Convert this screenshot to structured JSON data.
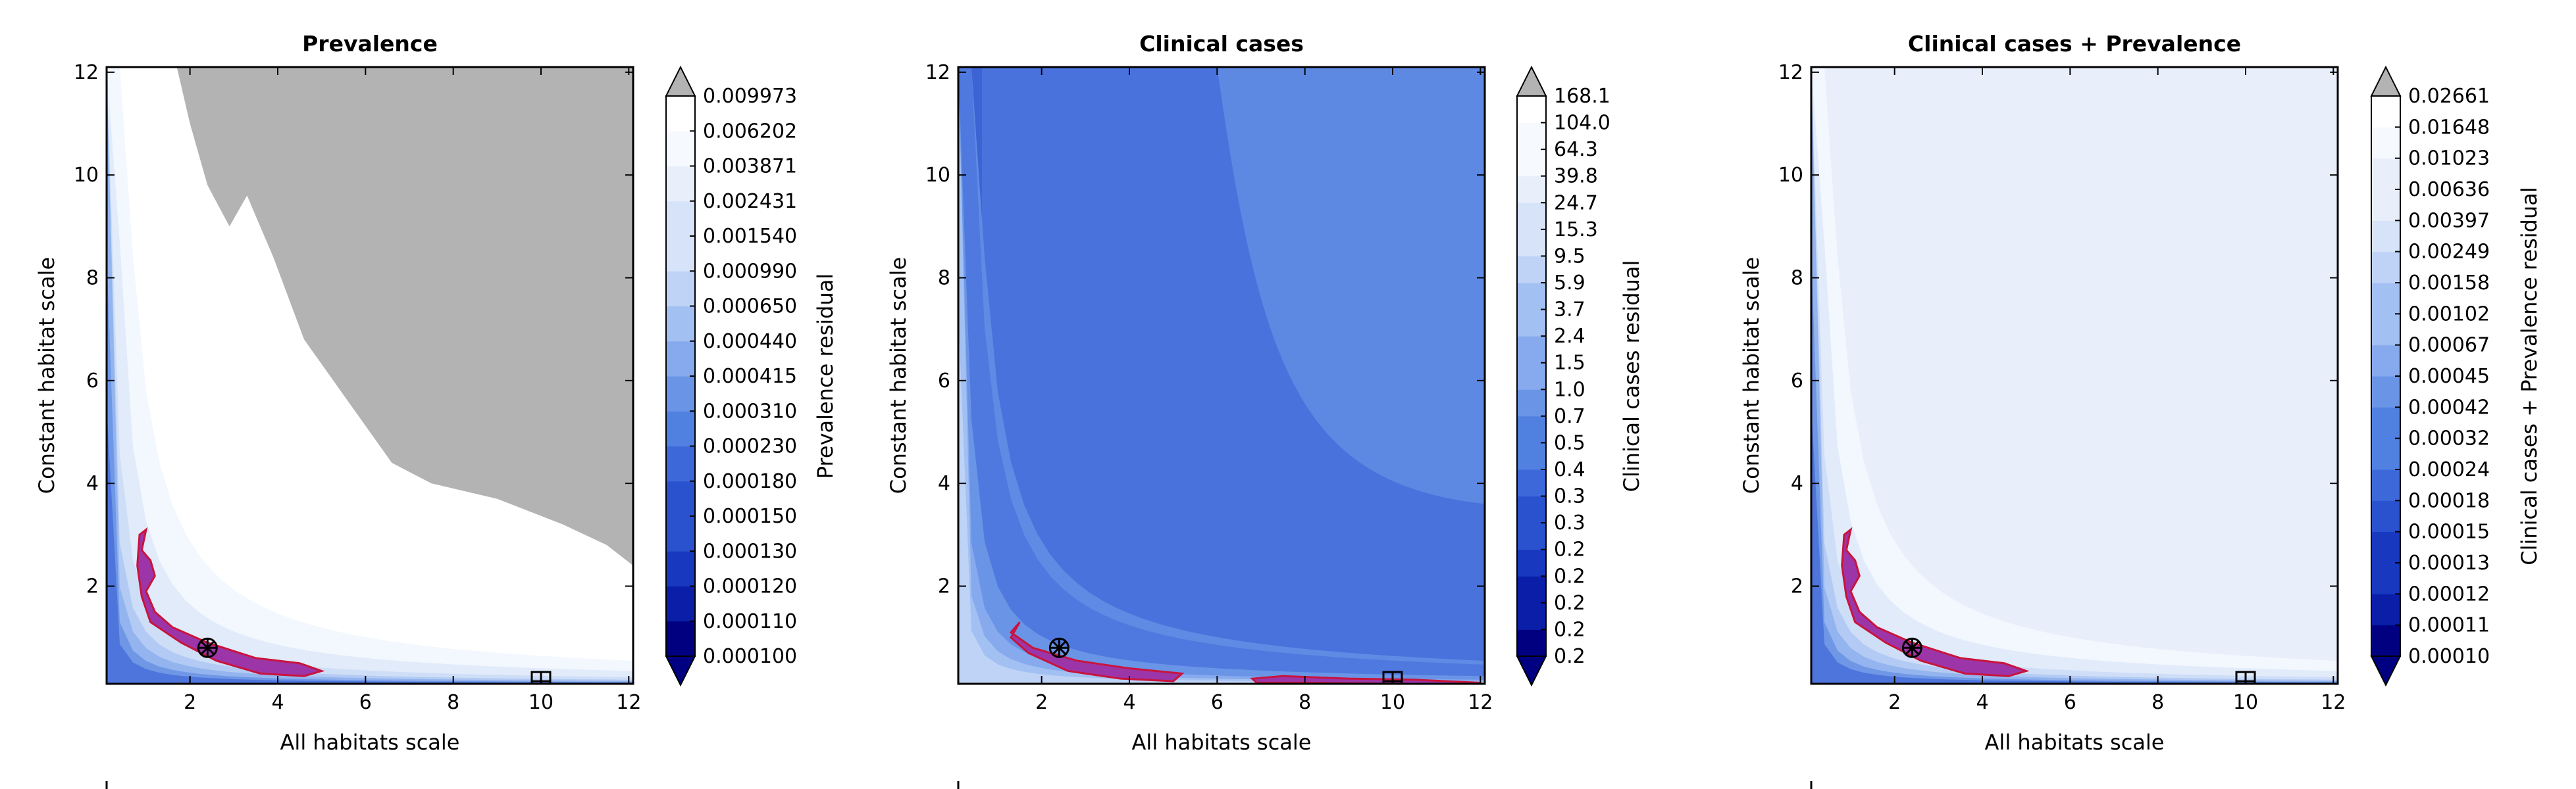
{
  "colors": {
    "masked": "#b3b3b3",
    "region_fill": "#9c36a8",
    "region_stroke": "#c8143c",
    "marker": "#000000",
    "scale": [
      "#000080",
      "#0a1ea8",
      "#1838c0",
      "#2a52cf",
      "#3d68d9",
      "#5080e0",
      "#6a94e6",
      "#86aaed",
      "#a3c0f2",
      "#bed3f6",
      "#d6e3f9",
      "#e8effb",
      "#f6f9fe",
      "#ffffff"
    ]
  },
  "chart_data": [
    {
      "type": "heatmap",
      "title": "Prevalence",
      "xlabel": "All habitats scale",
      "ylabel": "Constant habitat scale",
      "colorbar_label": "Prevalence residual",
      "xlim": [
        0.1,
        12.1
      ],
      "ylim": [
        0.1,
        12.1
      ],
      "x_ticks": [
        "2",
        "4",
        "6",
        "8",
        "10",
        "12"
      ],
      "y_ticks": [
        "2",
        "4",
        "6",
        "8",
        "10",
        "12"
      ],
      "levels": [
        "0.000100",
        "0.000110",
        "0.000120",
        "0.000130",
        "0.000150",
        "0.000180",
        "0.000230",
        "0.000310",
        "0.000415",
        "0.000440",
        "0.000650",
        "0.000990",
        "0.001540",
        "0.002431",
        "0.003871",
        "0.006202",
        "0.009973"
      ],
      "masked_region": true,
      "best_region": [
        [
          1.0,
          3.1
        ],
        [
          0.9,
          2.7
        ],
        [
          1.1,
          2.5
        ],
        [
          1.2,
          2.2
        ],
        [
          1.0,
          1.9
        ],
        [
          1.2,
          1.5
        ],
        [
          1.6,
          1.2
        ],
        [
          2.4,
          0.9
        ],
        [
          3.5,
          0.6
        ],
        [
          4.5,
          0.5
        ],
        [
          5.0,
          0.35
        ],
        [
          4.6,
          0.25
        ],
        [
          3.6,
          0.3
        ],
        [
          2.6,
          0.55
        ],
        [
          1.8,
          0.9
        ],
        [
          1.1,
          1.3
        ],
        [
          0.9,
          1.8
        ],
        [
          0.8,
          2.4
        ],
        [
          0.85,
          3.0
        ]
      ],
      "optimum_marker": {
        "x": 2.4,
        "y": 0.8
      },
      "reference_marker": {
        "x": 10.0,
        "y": 0.15
      }
    },
    {
      "type": "heatmap",
      "title": "Clinical cases",
      "xlabel": "All habitats scale",
      "ylabel": "Constant habitat scale",
      "colorbar_label": "Clinical cases residual",
      "xlim": [
        0.1,
        12.1
      ],
      "ylim": [
        0.1,
        12.1
      ],
      "x_ticks": [
        "2",
        "4",
        "6",
        "8",
        "10",
        "12"
      ],
      "y_ticks": [
        "2",
        "4",
        "6",
        "8",
        "10",
        "12"
      ],
      "levels": [
        "0.2",
        "0.2",
        "0.2",
        "0.2",
        "0.2",
        "0.3",
        "0.3",
        "0.4",
        "0.5",
        "0.7",
        "1.0",
        "1.5",
        "2.4",
        "3.7",
        "5.9",
        "9.5",
        "15.3",
        "24.7",
        "39.8",
        "64.3",
        "104.0",
        "168.1"
      ],
      "masked_region": false,
      "best_region": [
        [
          1.5,
          1.3
        ],
        [
          1.3,
          1.1
        ],
        [
          1.8,
          0.8
        ],
        [
          2.8,
          0.55
        ],
        [
          4.0,
          0.4
        ],
        [
          5.2,
          0.3
        ],
        [
          5.0,
          0.15
        ],
        [
          3.8,
          0.2
        ],
        [
          2.6,
          0.35
        ],
        [
          1.7,
          0.7
        ],
        [
          1.3,
          1.0
        ]
      ],
      "best_region_2": [
        [
          6.8,
          0.2
        ],
        [
          7.5,
          0.25
        ],
        [
          9.0,
          0.2
        ],
        [
          10.5,
          0.18
        ],
        [
          12.0,
          0.12
        ],
        [
          12.0,
          0.1
        ],
        [
          10.0,
          0.1
        ],
        [
          8.0,
          0.12
        ],
        [
          6.9,
          0.12
        ]
      ],
      "optimum_marker": {
        "x": 2.4,
        "y": 0.8
      },
      "reference_marker": {
        "x": 10.0,
        "y": 0.15
      }
    },
    {
      "type": "heatmap",
      "title": "Clinical cases + Prevalence",
      "xlabel": "All habitats scale",
      "ylabel": "Constant habitat scale",
      "colorbar_label": "Clinical cases + Prevalence residual",
      "xlim": [
        0.1,
        12.1
      ],
      "ylim": [
        0.1,
        12.1
      ],
      "x_ticks": [
        "2",
        "4",
        "6",
        "8",
        "10",
        "12"
      ],
      "y_ticks": [
        "2",
        "4",
        "6",
        "8",
        "10",
        "12"
      ],
      "levels": [
        "0.00010",
        "0.00011",
        "0.00012",
        "0.00013",
        "0.00015",
        "0.00018",
        "0.00024",
        "0.00032",
        "0.00042",
        "0.00045",
        "0.00067",
        "0.00102",
        "0.00158",
        "0.00249",
        "0.00397",
        "0.00636",
        "0.01023",
        "0.01648",
        "0.02661"
      ],
      "masked_region": false,
      "best_region": [
        [
          1.0,
          3.1
        ],
        [
          0.9,
          2.7
        ],
        [
          1.1,
          2.5
        ],
        [
          1.2,
          2.2
        ],
        [
          1.0,
          1.9
        ],
        [
          1.2,
          1.5
        ],
        [
          1.6,
          1.2
        ],
        [
          2.4,
          0.9
        ],
        [
          3.5,
          0.6
        ],
        [
          4.5,
          0.5
        ],
        [
          5.0,
          0.35
        ],
        [
          4.6,
          0.25
        ],
        [
          3.6,
          0.3
        ],
        [
          2.6,
          0.55
        ],
        [
          1.8,
          0.9
        ],
        [
          1.1,
          1.3
        ],
        [
          0.9,
          1.8
        ],
        [
          0.8,
          2.4
        ],
        [
          0.85,
          3.0
        ]
      ],
      "optimum_marker": {
        "x": 2.4,
        "y": 0.8
      },
      "reference_marker": {
        "x": 10.0,
        "y": 0.15
      }
    }
  ]
}
